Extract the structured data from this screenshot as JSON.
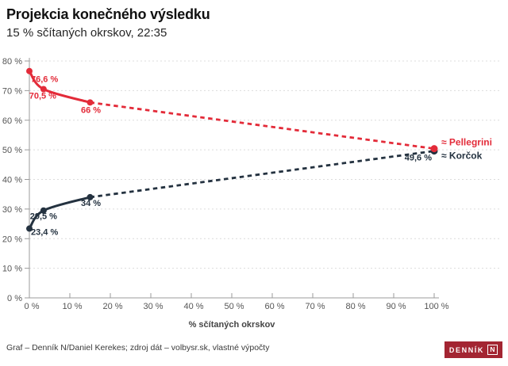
{
  "header": {
    "title": "Projekcia konečného výsledku",
    "subtitle": "15 % sčítaných okrskov, 22:35"
  },
  "chart_data": {
    "type": "line",
    "title": "Projekcia konečného výsledku",
    "subtitle": "15 % sčítaných okrskov, 22:35",
    "xlabel": "% sčítaných okrskov",
    "ylabel": "",
    "xlim": [
      0,
      100
    ],
    "ylim": [
      0,
      80
    ],
    "grid": "horizontal dashed gridlines, extended past plot right edge",
    "legend_position": "right of line endpoints",
    "x_tick_values": [
      0,
      10,
      20,
      30,
      40,
      50,
      60,
      70,
      80,
      90,
      100
    ],
    "x_tick_labels": [
      "0 %",
      "10 %",
      "20 %",
      "30 %",
      "40 %",
      "50 %",
      "60 %",
      "70 %",
      "80 %",
      "90 %",
      "100 %"
    ],
    "y_tick_values": [
      0,
      10,
      20,
      30,
      40,
      50,
      60,
      70,
      80
    ],
    "y_tick_labels": [
      "0 %",
      "10 %",
      "20 %",
      "30 %",
      "40 %",
      "50 %",
      "60 %",
      "70 %",
      "80 %"
    ],
    "series": [
      {
        "id": "korcok",
        "name": "Korčok",
        "legend_label": "≈ Korčok",
        "color": "#243240",
        "legend_dy": 10,
        "observed": [
          {
            "x": 0,
            "y": 23.4,
            "label": "23,4 %",
            "anchor": "start",
            "dx": 2,
            "dy": 8
          },
          {
            "x": 3.5,
            "y": 29.5,
            "label": "29,5 %",
            "anchor": "middle",
            "dx": 0,
            "dy": 11
          },
          {
            "x": 15,
            "y": 34,
            "label": "34 %",
            "anchor": "middle",
            "dx": 1,
            "dy": 11
          }
        ],
        "projected": {
          "x": 100,
          "y": 49.6,
          "label": "49,6 %",
          "anchor": "end",
          "dx": -3,
          "dy": 12
        }
      },
      {
        "id": "pellegrini",
        "name": "Pellegrini",
        "legend_label": "≈ Pellegrini",
        "color": "#e32b39",
        "legend_dy": -4,
        "observed": [
          {
            "x": 0,
            "y": 76.6,
            "label": "76,6 %",
            "anchor": "start",
            "dx": 2,
            "dy": 14
          },
          {
            "x": 3.5,
            "y": 70.5,
            "label": "70,5 %",
            "anchor": "middle",
            "dx": -1,
            "dy": 12
          },
          {
            "x": 15,
            "y": 66,
            "label": "66 %",
            "anchor": "middle",
            "dx": 1,
            "dy": 13
          }
        ],
        "projected": {
          "x": 100,
          "y": 50.4,
          "label": "",
          "anchor": "end",
          "dx": 0,
          "dy": 0
        }
      }
    ]
  },
  "footer": {
    "credit": "Graf – Denník N/Daniel Kerekes; zdroj dát – volbysr.sk, vlastné výpočty",
    "logo_text": "DENNÍK",
    "logo_n": "N",
    "logo_color": "#a32532"
  }
}
